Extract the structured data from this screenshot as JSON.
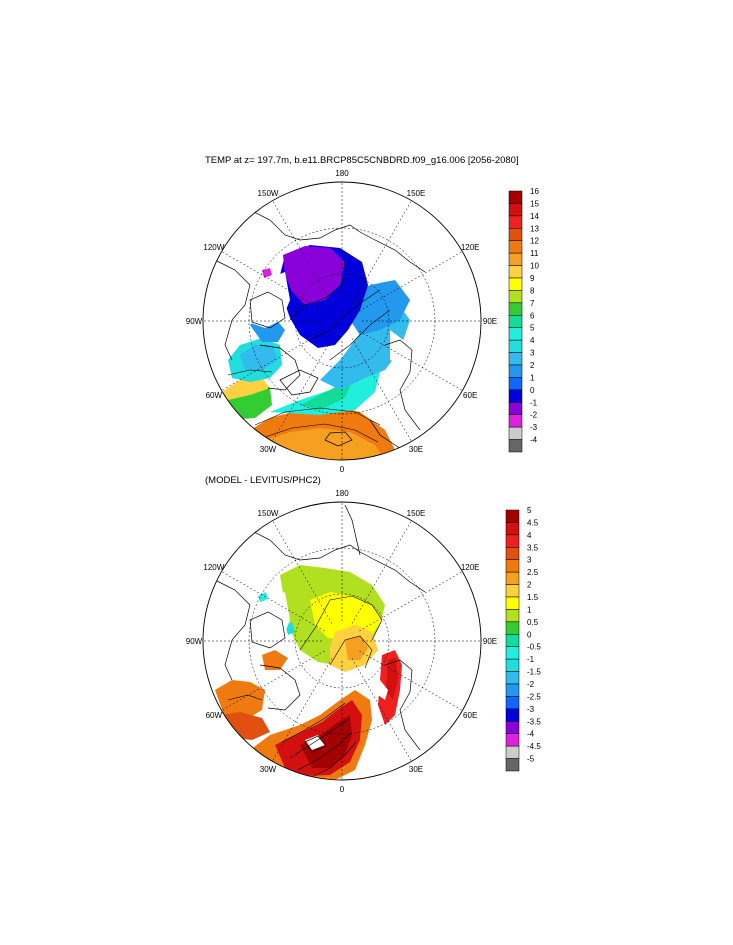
{
  "panels": [
    {
      "title": "TEMP at z= 197.7m, b.e11.BRCP85C5CNBDRD.f09_g16.006 [2056-2080]",
      "lon_labels": [
        "180",
        "150E",
        "120E",
        "90E",
        "60E",
        "30E",
        "0",
        "30W",
        "60W",
        "90W",
        "120W",
        "150W"
      ],
      "colorbar_labels": [
        "16",
        "15",
        "14",
        "13",
        "12",
        "11",
        "10",
        "9",
        "8",
        "7",
        "6",
        "5",
        "4",
        "3",
        "2",
        "1",
        "0",
        "-1",
        "-2",
        "-3",
        "-4"
      ],
      "colorbar_colors": [
        "#a50000",
        "#d21010",
        "#ee2020",
        "#e25010",
        "#ee7a10",
        "#f5a020",
        "#ffd040",
        "#ffff00",
        "#b0e020",
        "#33cc33",
        "#11dd99",
        "#22eedd",
        "#22dddd",
        "#33bbee",
        "#2299ee",
        "#1166ff",
        "#0000dd",
        "#8a00d8",
        "#dd22dd",
        "#cccccc",
        "#666666"
      ]
    },
    {
      "title": "(MODEL - LEVITUS/PHC2)",
      "lon_labels": [
        "180",
        "150E",
        "120E",
        "90E",
        "60E",
        "30E",
        "0",
        "30W",
        "60W",
        "90W",
        "120W",
        "150W"
      ],
      "colorbar_labels": [
        "5",
        "4.5",
        "4",
        "3.5",
        "3",
        "2.5",
        "2",
        "1.5",
        "1",
        "0.5",
        "0",
        "-0.5",
        "-1",
        "-1.5",
        "-2",
        "-2.5",
        "-3",
        "-3.5",
        "-4",
        "-4.5",
        "-5"
      ],
      "colorbar_colors": [
        "#a50000",
        "#d21010",
        "#ee2020",
        "#e25010",
        "#ee7a10",
        "#f5a020",
        "#ffd040",
        "#ffff00",
        "#b0e020",
        "#33cc33",
        "#11dd99",
        "#22eedd",
        "#22dddd",
        "#33bbee",
        "#2299ee",
        "#1166ff",
        "#0000dd",
        "#8a00d8",
        "#dd22dd",
        "#cccccc",
        "#666666"
      ]
    }
  ]
}
